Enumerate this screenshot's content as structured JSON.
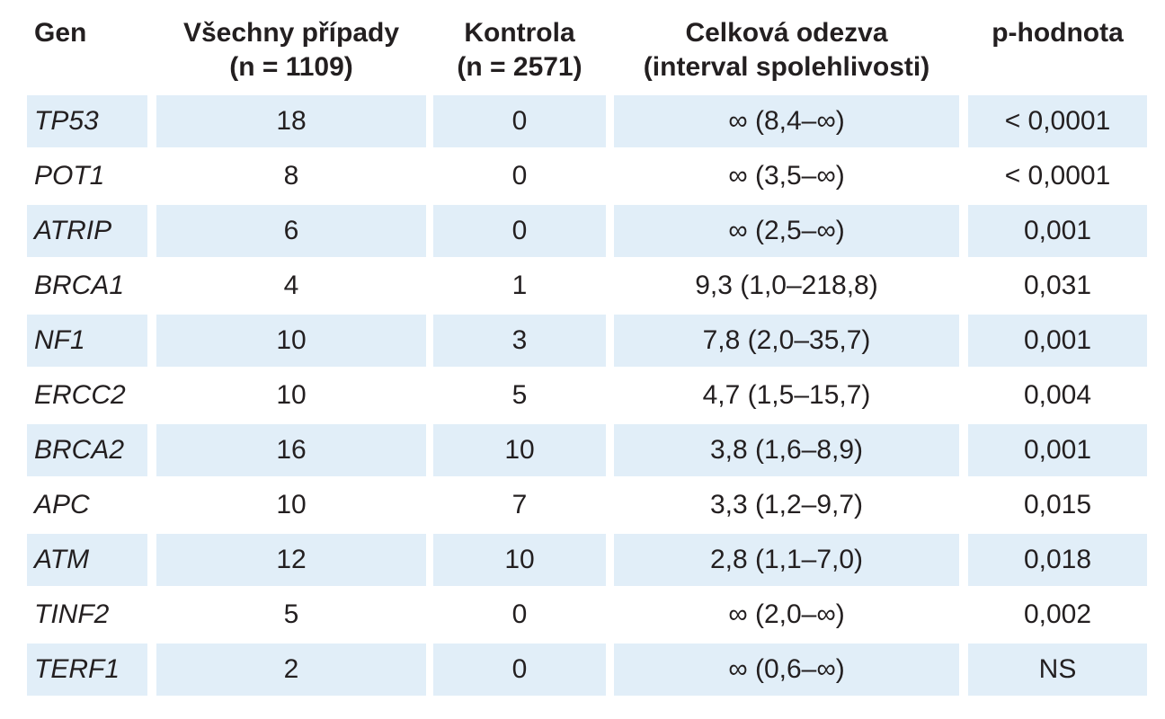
{
  "table": {
    "headers": [
      {
        "line1": "Gen",
        "line2": ""
      },
      {
        "line1": "Všechny případy",
        "line2": "(n = 1109)"
      },
      {
        "line1": "Kontrola",
        "line2": "(n = 2571)"
      },
      {
        "line1": "Celková odezva",
        "line2": "(interval spolehlivosti)"
      },
      {
        "line1": "p-hodnota",
        "line2": ""
      }
    ],
    "rows": [
      {
        "gene": "TP53",
        "all_cases": "18",
        "control": "0",
        "overall": "∞ (8,4–∞)",
        "p": "< 0,0001"
      },
      {
        "gene": "POT1",
        "all_cases": "8",
        "control": "0",
        "overall": "∞ (3,5–∞)",
        "p": "< 0,0001"
      },
      {
        "gene": "ATRIP",
        "all_cases": "6",
        "control": "0",
        "overall": "∞ (2,5–∞)",
        "p": "0,001"
      },
      {
        "gene": "BRCA1",
        "all_cases": "4",
        "control": "1",
        "overall": "9,3 (1,0–218,8)",
        "p": "0,031"
      },
      {
        "gene": "NF1",
        "all_cases": "10",
        "control": "3",
        "overall": "7,8 (2,0–35,7)",
        "p": "0,001"
      },
      {
        "gene": "ERCC2",
        "all_cases": "10",
        "control": "5",
        "overall": "4,7 (1,5–15,7)",
        "p": "0,004"
      },
      {
        "gene": "BRCA2",
        "all_cases": "16",
        "control": "10",
        "overall": "3,8 (1,6–8,9)",
        "p": "0,001"
      },
      {
        "gene": "APC",
        "all_cases": "10",
        "control": "7",
        "overall": "3,3 (1,2–9,7)",
        "p": "0,015"
      },
      {
        "gene": "ATM",
        "all_cases": "12",
        "control": "10",
        "overall": "2,8 (1,1–7,0)",
        "p": "0,018"
      },
      {
        "gene": "TINF2",
        "all_cases": "5",
        "control": "0",
        "overall": "∞ (2,0–∞)",
        "p": "0,002"
      },
      {
        "gene": "TERF1",
        "all_cases": "2",
        "control": "0",
        "overall": "∞ (0,6–∞)",
        "p": "NS"
      }
    ]
  },
  "colors": {
    "shade": "#e1eef8",
    "text": "#231f20"
  }
}
